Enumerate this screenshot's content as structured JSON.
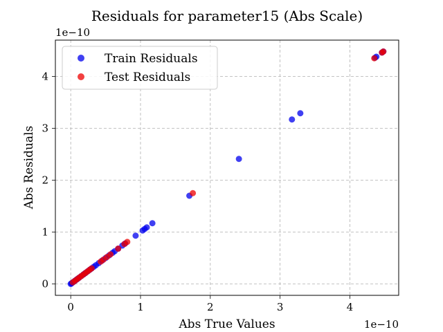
{
  "chart_data": {
    "type": "scatter",
    "title": "Residuals for parameter15 (Abs Scale)",
    "xlabel": "Abs True Values",
    "ylabel": "Abs Residuals",
    "x_offset_text": "1e−10",
    "y_offset_text": "1e−10",
    "xlim": [
      -0.22,
      4.7
    ],
    "ylim": [
      -0.22,
      4.7
    ],
    "x_ticks": [
      0,
      1,
      2,
      3,
      4
    ],
    "y_ticks": [
      0,
      1,
      2,
      3,
      4
    ],
    "grid": true,
    "legend_position": "upper-left",
    "series": [
      {
        "name": "Train Residuals",
        "color": "#0000ee",
        "x": [
          0.0,
          0.01,
          0.02,
          0.04,
          0.06,
          0.08,
          0.1,
          0.12,
          0.15,
          0.18,
          0.2,
          0.22,
          0.25,
          0.28,
          0.3,
          0.33,
          0.36,
          0.4,
          0.45,
          0.5,
          0.55,
          0.6,
          0.63,
          0.68,
          0.74,
          0.78,
          0.93,
          1.03,
          1.06,
          1.09,
          1.17,
          1.7,
          2.41,
          3.17,
          3.29,
          4.36,
          4.38,
          4.46,
          4.48
        ],
        "y": [
          0.0,
          0.01,
          0.02,
          0.04,
          0.06,
          0.08,
          0.1,
          0.12,
          0.15,
          0.18,
          0.2,
          0.22,
          0.25,
          0.28,
          0.3,
          0.33,
          0.36,
          0.4,
          0.45,
          0.5,
          0.55,
          0.6,
          0.63,
          0.68,
          0.74,
          0.78,
          0.93,
          1.03,
          1.06,
          1.09,
          1.17,
          1.7,
          2.41,
          3.17,
          3.29,
          4.36,
          4.38,
          4.46,
          4.48
        ]
      },
      {
        "name": "Test Residuals",
        "color": "#ee0000",
        "x": [
          0.03,
          0.06,
          0.09,
          0.12,
          0.15,
          0.18,
          0.21,
          0.24,
          0.27,
          0.3,
          0.43,
          0.47,
          0.52,
          0.57,
          0.68,
          0.77,
          0.81,
          1.75,
          4.35,
          4.46,
          4.48
        ],
        "y": [
          0.03,
          0.06,
          0.09,
          0.12,
          0.15,
          0.18,
          0.21,
          0.24,
          0.27,
          0.3,
          0.43,
          0.47,
          0.52,
          0.57,
          0.68,
          0.77,
          0.81,
          1.75,
          4.35,
          4.46,
          4.48
        ]
      }
    ]
  }
}
